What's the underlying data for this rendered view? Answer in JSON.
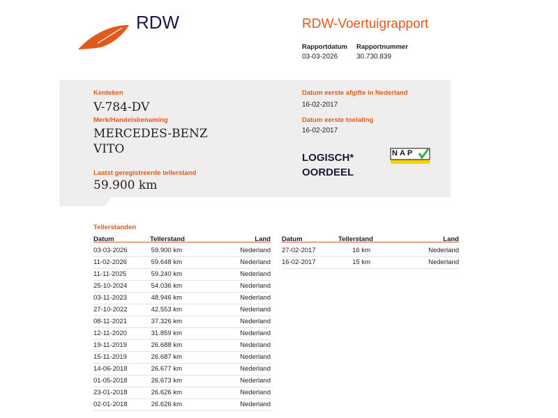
{
  "header": {
    "brand": "RDW",
    "title": "RDW-Voertuigrapport",
    "report_date_label": "Rapportdatum",
    "report_date": "03-03-2026",
    "report_number_label": "Rapportnummer",
    "report_number": "30.730.839"
  },
  "vehicle": {
    "plate_label": "Kenteken",
    "plate": "V-784-DV",
    "make_label": "Merk/Handelsbenaming",
    "make": "MERCEDES-BENZ",
    "model": "VITO",
    "odometer_label": "Laatst geregistreerde tellerstand",
    "odometer": "59.900 km",
    "first_issue_label": "Datum eerste afgifte in Nederland",
    "first_issue": "16-02-2017",
    "first_admission_label": "Datum eerste toelating",
    "first_admission": "16-02-2017"
  },
  "nap": {
    "logo": "NAP",
    "verdict": [
      "LOGISCH*",
      "OORDEEL"
    ]
  },
  "odometer_history": {
    "title": "Tellerstanden",
    "columns": [
      "Datum",
      "Tellerstand",
      "Land"
    ],
    "tables": [
      {
        "rows": [
          [
            "03-03-2026",
            "59.900 km",
            "Nederland"
          ],
          [
            "11-02-2026",
            "59.648 km",
            "Nederland"
          ],
          [
            "11-11-2025",
            "59.240 km",
            "Nederland"
          ],
          [
            "25-10-2024",
            "54.036 km",
            "Nederland"
          ],
          [
            "03-11-2023",
            "48.946 km",
            "Nederland"
          ],
          [
            "27-10-2022",
            "42.553 km",
            "Nederland"
          ],
          [
            "08-11-2021",
            "37.326 km",
            "Nederland"
          ],
          [
            "12-11-2020",
            "31.859 km",
            "Nederland"
          ],
          [
            "19-11-2019",
            "26.688 km",
            "Nederland"
          ],
          [
            "15-11-2019",
            "26.687 km",
            "Nederland"
          ],
          [
            "14-06-2018",
            "26.677 km",
            "Nederland"
          ],
          [
            "01-05-2018",
            "26.673 km",
            "Nederland"
          ],
          [
            "23-01-2018",
            "26.626 km",
            "Nederland"
          ],
          [
            "02-01-2018",
            "26.626 km",
            "Nederland"
          ]
        ]
      },
      {
        "rows": [
          [
            "27-02-2017",
            "16 km",
            "Nederland"
          ],
          [
            "16-02-2017",
            "15 km",
            "Nederland"
          ]
        ]
      }
    ]
  }
}
